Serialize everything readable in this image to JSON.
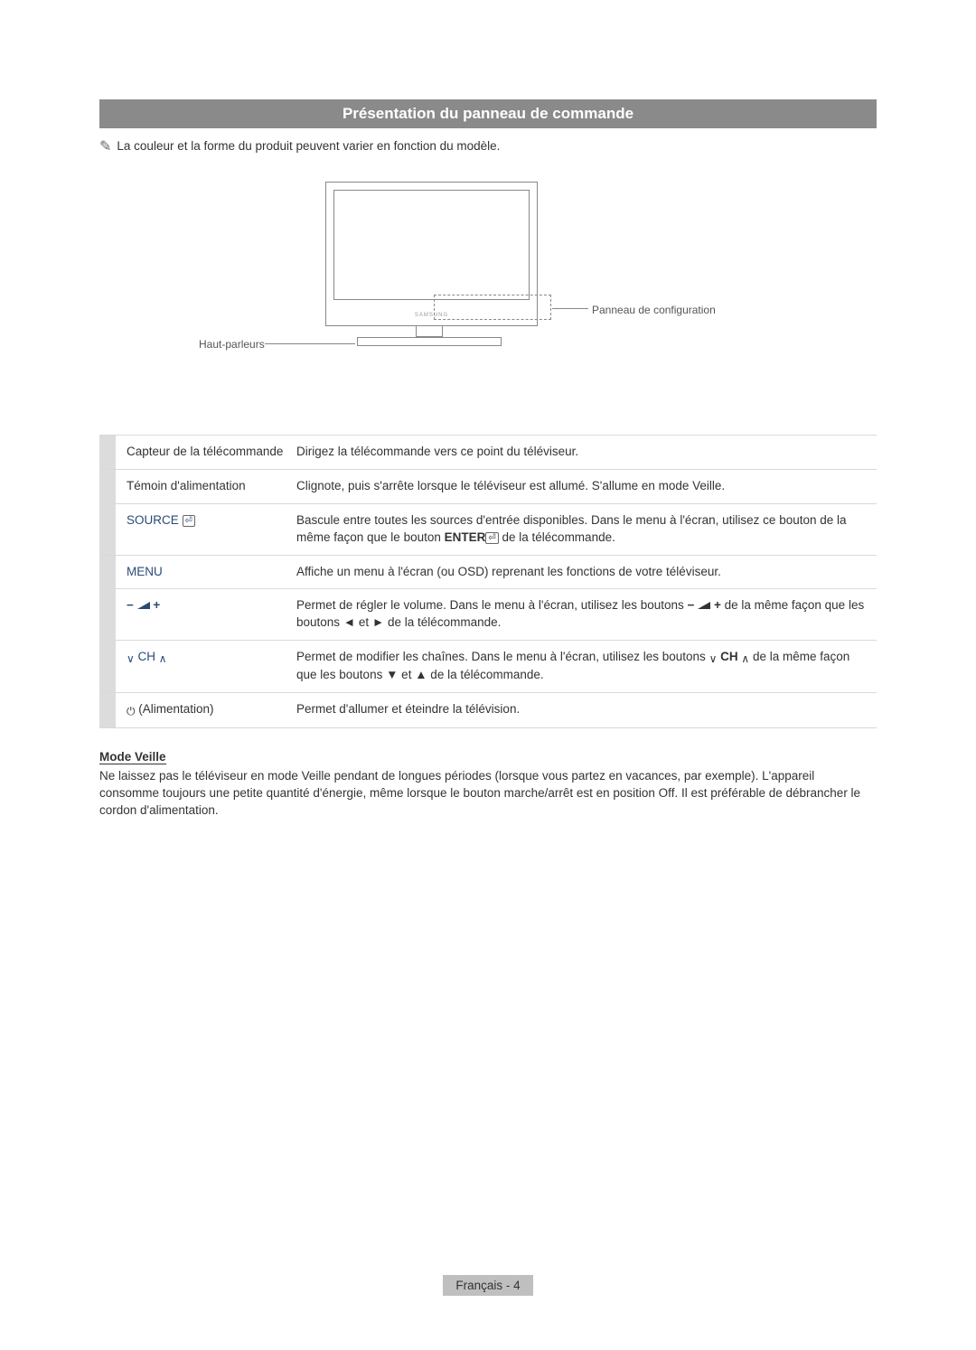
{
  "section_title": "Présentation du panneau de commande",
  "note_text": "La couleur et la forme du produit peuvent varier en fonction du modèle.",
  "diagram": {
    "brand": "SAMSUNG",
    "label_right": "Panneau de configuration",
    "label_left": "Haut-parleurs"
  },
  "rows": [
    {
      "label_html": "Capteur de la télécommande",
      "label_class": "dark",
      "desc_html": "Dirigez la télécommande vers ce point du téléviseur."
    },
    {
      "label_html": "Témoin d'alimentation",
      "label_class": "dark",
      "desc_html": "Clignote, puis s'arrête lorsque le téléviseur est allumé. S'allume en mode Veille."
    },
    {
      "label_html": "SOURCE <span class='enter-box'>⏎</span>",
      "label_class": "",
      "desc_html": "Bascule entre toutes les sources d'entrée disponibles. Dans le menu à l'écran, utilisez ce bouton de la même façon que le bouton <b>ENTER</b><span class='enter-box'>⏎</span> de la télécommande."
    },
    {
      "label_html": "MENU",
      "label_class": "",
      "desc_html": "Affiche un menu à l'écran (ou OSD) reprenant les fonctions de votre téléviseur."
    },
    {
      "label_html": "<b>−</b> <span class='vol-glyph'><svg viewBox='0 0 14 8'><polygon points='0,8 14,8 14,0' fill='#2a4a75'/></svg></span> <b>+</b>",
      "label_class": "",
      "desc_html": "Permet de régler le volume. Dans le menu à l'écran, utilisez les boutons <b>−</b> <span class='vol-glyph'><svg viewBox='0 0 14 8'><polygon points='0,8 14,8 14,0' fill='#333'/></svg></span> <b>+</b> de la même façon que les boutons ◄ et ► de la télécommande."
    },
    {
      "label_html": "<span class='inline-icon'>∨</span> CH <span class='inline-icon'>∧</span>",
      "label_class": "",
      "desc_html": "Permet de modifier les chaînes. Dans le menu à l'écran, utilisez les boutons <span class='inline-icon'>∨</span> <b>CH</b> <span class='inline-icon'>∧</span> de la même façon que les boutons ▼ et ▲ de la télécommande."
    },
    {
      "label_html": "<span class='inline-icon'>⏻</span> (Alimentation)",
      "label_class": "dark",
      "desc_html": "Permet d'allumer et éteindre la télévision."
    }
  ],
  "mode_veille": {
    "title": "Mode Veille",
    "text": "Ne laissez pas le téléviseur en mode Veille pendant de longues périodes (lorsque vous partez en vacances, par exemple). L'appareil consomme toujours une petite quantité d'énergie, même lorsque le bouton marche/arrêt est en position Off. Il est préférable de débrancher le cordon d'alimentation."
  },
  "footer": {
    "language": "Français",
    "page": "4"
  },
  "colors": {
    "header_bg": "#8a8a8a",
    "header_fg": "#ffffff",
    "bar_bg": "#dcdcdc",
    "accent": "#2a4a75",
    "footer_bg": "#bfbfbf",
    "rule": "#d9d9d9"
  }
}
